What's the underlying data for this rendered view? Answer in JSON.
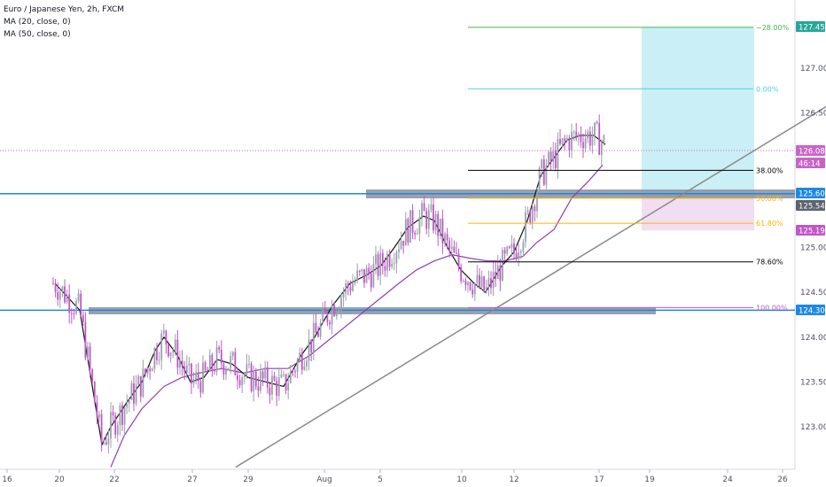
{
  "header": {
    "title": "Euro / Japanese Yen, 2h, FXCM",
    "indicators": [
      "MA (20, close, 0)",
      "MA (50, close, 0)"
    ]
  },
  "colors": {
    "up": "#9aa0ac",
    "down": "#c056c8",
    "ma20": "#111111",
    "ma50": "#8e3fb3",
    "hline": "#1e88e5",
    "zone": "#8a8f9c",
    "target_box": "#c8eef5",
    "stop_box": "#f1dcf1",
    "trendline": "#8a8a8a",
    "current_price_line": "#c864c8"
  },
  "chart_data": {
    "type": "candlestick",
    "symbol": "Euro / Japanese Yen, 2h, FXCM",
    "price_axis": {
      "min": 122.6,
      "max": 127.7,
      "ticks": [
        "127.000",
        "126.500",
        "125.000",
        "124.500",
        "124.000",
        "123.500",
        "123.000"
      ]
    },
    "time_axis": {
      "ticks": [
        "16",
        "20",
        "22",
        "27",
        "29",
        "Aug",
        "5",
        "10",
        "12",
        "17",
        "19",
        "24",
        "26"
      ]
    },
    "price_labels": [
      {
        "text": "127.455",
        "color": "#26a69a"
      },
      {
        "text": "126.082",
        "color": "#c864c8"
      },
      {
        "text": "46:14",
        "color": "#c864c8"
      },
      {
        "text": "125.600",
        "color": "#1e88e5"
      },
      {
        "text": "125.547",
        "color": "#5d6270"
      },
      {
        "text": "125.190",
        "color": "#c056c8"
      },
      {
        "text": "124.300",
        "color": "#1e88e5"
      }
    ],
    "horizontal_lines": [
      125.6,
      124.3
    ],
    "fib_levels": [
      {
        "label": "−28.00%",
        "price": 127.455,
        "color": "#4caf50"
      },
      {
        "label": "0.00%",
        "price": 126.77,
        "color": "#4dd0e1"
      },
      {
        "label": "38.00%",
        "price": 125.86,
        "color": "#000000"
      },
      {
        "label": "50.00%",
        "price": 125.55,
        "color": "#ffb300"
      },
      {
        "label": "61.80%",
        "price": 125.27,
        "color": "#ffb300"
      },
      {
        "label": "78.60%",
        "price": 124.84,
        "color": "#000000"
      },
      {
        "label": "100.00%",
        "price": 124.33,
        "color": "#c056c8"
      }
    ],
    "position": {
      "entry": 125.547,
      "target": 127.455,
      "stop": 125.19
    },
    "last_price": 126.082,
    "ma20_path": [
      [
        62,
        124.6
      ],
      [
        90,
        124.3
      ],
      [
        115,
        122.8
      ],
      [
        125,
        123.0
      ],
      [
        145,
        123.3
      ],
      [
        160,
        123.5
      ],
      [
        175,
        123.85
      ],
      [
        185,
        124.0
      ],
      [
        200,
        123.8
      ],
      [
        215,
        123.5
      ],
      [
        230,
        123.55
      ],
      [
        245,
        123.75
      ],
      [
        262,
        123.7
      ],
      [
        280,
        123.55
      ],
      [
        300,
        123.5
      ],
      [
        320,
        123.45
      ],
      [
        340,
        123.8
      ],
      [
        355,
        124.0
      ],
      [
        375,
        124.35
      ],
      [
        395,
        124.6
      ],
      [
        415,
        124.7
      ],
      [
        430,
        124.8
      ],
      [
        445,
        125.0
      ],
      [
        460,
        125.22
      ],
      [
        478,
        125.35
      ],
      [
        490,
        125.3
      ],
      [
        505,
        125.0
      ],
      [
        520,
        124.75
      ],
      [
        535,
        124.6
      ],
      [
        548,
        124.5
      ],
      [
        565,
        124.78
      ],
      [
        580,
        124.95
      ],
      [
        595,
        125.3
      ],
      [
        610,
        125.8
      ],
      [
        625,
        126.0
      ],
      [
        640,
        126.2
      ],
      [
        655,
        126.25
      ],
      [
        670,
        126.25
      ],
      [
        683,
        126.15
      ]
    ],
    "ma50_path": [
      [
        125,
        122.55
      ],
      [
        140,
        122.9
      ],
      [
        160,
        123.2
      ],
      [
        185,
        123.45
      ],
      [
        205,
        123.55
      ],
      [
        225,
        123.6
      ],
      [
        250,
        123.65
      ],
      [
        275,
        123.6
      ],
      [
        300,
        123.65
      ],
      [
        325,
        123.65
      ],
      [
        350,
        123.8
      ],
      [
        375,
        124.0
      ],
      [
        400,
        124.2
      ],
      [
        425,
        124.4
      ],
      [
        450,
        124.6
      ],
      [
        470,
        124.75
      ],
      [
        490,
        124.85
      ],
      [
        510,
        124.92
      ],
      [
        530,
        124.88
      ],
      [
        550,
        124.85
      ],
      [
        570,
        124.85
      ],
      [
        590,
        124.9
      ],
      [
        605,
        125.05
      ],
      [
        625,
        125.2
      ],
      [
        645,
        125.55
      ],
      [
        665,
        125.75
      ],
      [
        680,
        125.92
      ]
    ],
    "trendline": {
      "from": [
        266,
        122.55
      ],
      "to": [
        932,
        126.57
      ]
    }
  }
}
